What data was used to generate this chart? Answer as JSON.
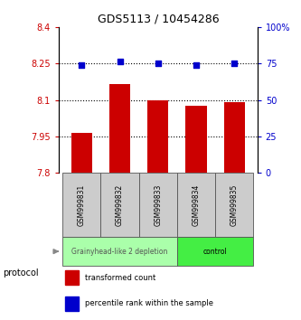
{
  "title": "GDS5113 / 10454286",
  "samples": [
    "GSM999831",
    "GSM999832",
    "GSM999833",
    "GSM999834",
    "GSM999835"
  ],
  "bar_values": [
    7.965,
    8.165,
    8.1,
    8.075,
    8.09
  ],
  "dot_values": [
    8.245,
    8.26,
    8.25,
    8.245,
    8.252
  ],
  "bar_color": "#cc0000",
  "dot_color": "#0000cc",
  "ylim_left": [
    7.8,
    8.4
  ],
  "ylim_right": [
    0,
    100
  ],
  "yticks_left": [
    7.8,
    7.95,
    8.1,
    8.25,
    8.4
  ],
  "yticks_left_labels": [
    "7.8",
    "7.95",
    "8.1",
    "8.25",
    "8.4"
  ],
  "yticks_right": [
    0,
    25,
    50,
    75,
    100
  ],
  "yticks_right_labels": [
    "0",
    "25",
    "50",
    "75",
    "100%"
  ],
  "hlines": [
    7.95,
    8.1,
    8.25
  ],
  "groups": [
    {
      "label": "Grainyhead-like 2 depletion",
      "indices": [
        0,
        1,
        2
      ],
      "color": "#aaffaa",
      "text_color": "#555555"
    },
    {
      "label": "control",
      "indices": [
        3,
        4
      ],
      "color": "#44ee44",
      "text_color": "#000000"
    }
  ],
  "protocol_label": "protocol",
  "legend": [
    {
      "color": "#cc0000",
      "label": "transformed count"
    },
    {
      "color": "#0000cc",
      "label": "percentile rank within the sample"
    }
  ],
  "bar_width": 0.55,
  "left_axis_color": "#cc0000",
  "right_axis_color": "#0000cc",
  "background_color": "#ffffff"
}
